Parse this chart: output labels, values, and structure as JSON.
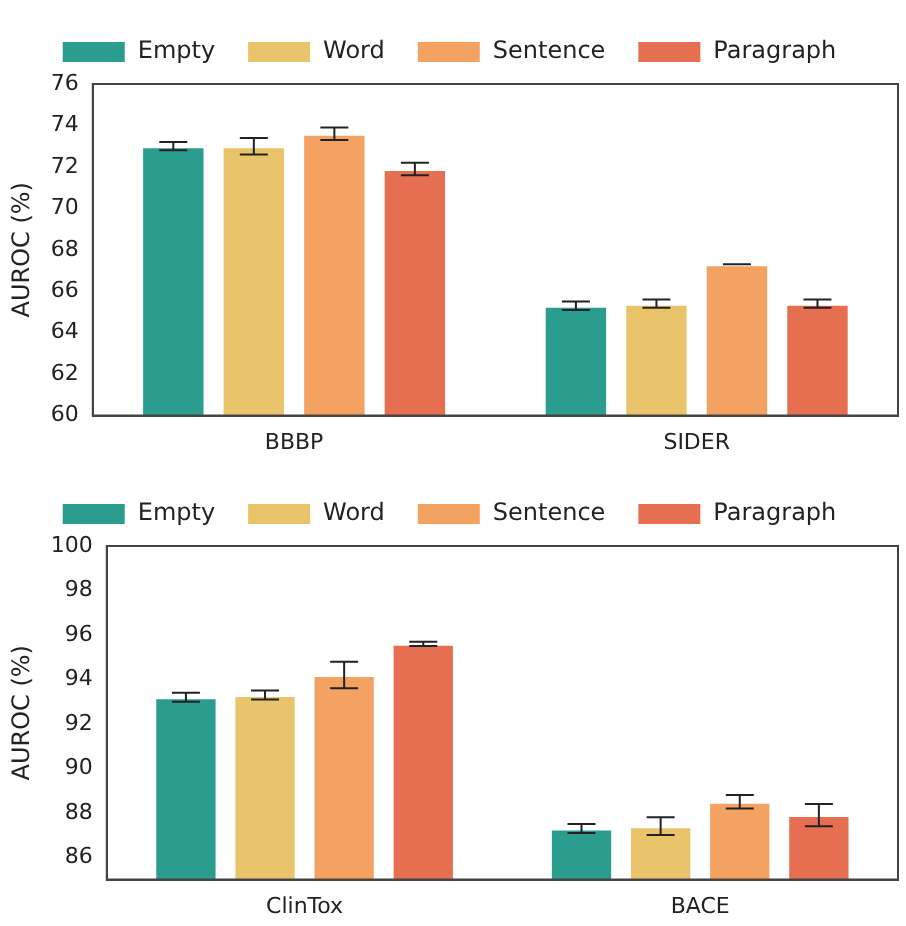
{
  "chart_data": [
    {
      "type": "bar",
      "ylabel": "AUROC (%)",
      "categories": [
        "BBBP",
        "SIDER"
      ],
      "ylim": [
        60,
        76
      ],
      "yticks": [
        60,
        62,
        64,
        66,
        68,
        70,
        72,
        74,
        76
      ],
      "legend": "top",
      "grid": false,
      "series": [
        {
          "name": "Empty",
          "color": "#2a9d8f",
          "values": [
            73.0,
            65.3
          ],
          "errors": [
            0.2,
            0.2
          ]
        },
        {
          "name": "Word",
          "color": "#e9c46a",
          "values": [
            73.0,
            65.4
          ],
          "errors": [
            0.4,
            0.2
          ]
        },
        {
          "name": "Sentence",
          "color": "#f4a261",
          "values": [
            73.6,
            67.3
          ],
          "errors": [
            0.3,
            0
          ]
        },
        {
          "name": "Paragraph",
          "color": "#e76f51",
          "values": [
            71.9,
            65.4
          ],
          "errors": [
            0.3,
            0.2
          ]
        }
      ]
    },
    {
      "type": "bar",
      "ylabel": "AUROC (%)",
      "categories": [
        "ClinTox",
        "BACE"
      ],
      "ylim": [
        85,
        100
      ],
      "yticks": [
        86,
        88,
        90,
        92,
        94,
        96,
        98,
        100
      ],
      "legend": "top",
      "grid": false,
      "series": [
        {
          "name": "Empty",
          "color": "#2a9d8f",
          "values": [
            93.2,
            87.3
          ],
          "errors": [
            0.2,
            0.2
          ]
        },
        {
          "name": "Word",
          "color": "#e9c46a",
          "values": [
            93.3,
            87.4
          ],
          "errors": [
            0.2,
            0.4
          ]
        },
        {
          "name": "Sentence",
          "color": "#f4a261",
          "values": [
            94.2,
            88.5
          ],
          "errors": [
            0.6,
            0.3
          ]
        },
        {
          "name": "Paragraph",
          "color": "#e76f51",
          "values": [
            95.6,
            87.9
          ],
          "errors": [
            0.1,
            0.5
          ]
        }
      ]
    }
  ]
}
